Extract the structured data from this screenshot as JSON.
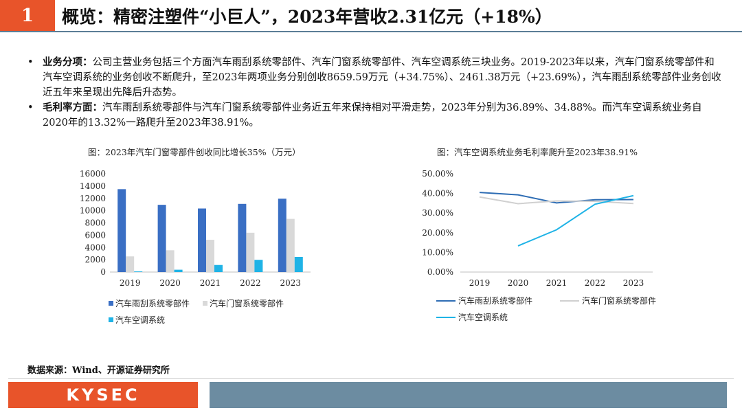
{
  "header": {
    "number": "1",
    "title": "概览：精密注塑件“小巨人”，2023年营收2.31亿元（+18%）"
  },
  "bullets": [
    {
      "label": "业务分项：",
      "text": "公司主营业务包括三个方面汽车雨刮系统零部件、汽车门窗系统零部件、汽车空调系统三块业务。2019-2023年以来，汽车门窗系统零部件和汽车空调系统的业务创收不断爬升，至2023年两项业务分别创收8659.59万元（+34.75%）、2461.38万元（+23.69%），汽车雨刮系统零部件业务创收近五年来呈现出先降后升态势。"
    },
    {
      "label": "毛利率方面：",
      "text": "汽车雨刮系统零部件与汽车门窗系统零部件业务近五年来保持相对平滑走势，2023年分别为36.89%、34.88%。而汽车空调系统业务自2020年的13.32%一路爬升至2023年38.91%。"
    }
  ],
  "source": "数据来源：Wind、开源证券研究所",
  "logo": "KYSEC",
  "colors": {
    "accent": "#e8542a",
    "bar_blue": "#3a6fc4",
    "bar_gray": "#d9d9d9",
    "bar_cyan": "#1fb3e6",
    "line_blue": "#2e6db4",
    "line_gray": "#d0d0d0",
    "line_cyan": "#1fb3e6"
  },
  "chart_data": [
    {
      "type": "bar",
      "title": "图：2023年汽车门窗零部件创收同比增长35%（万元）",
      "categories": [
        "2019",
        "2020",
        "2021",
        "2022",
        "2023"
      ],
      "ylim": [
        0,
        16000
      ],
      "yticks": [
        "0",
        "2000",
        "4000",
        "6000",
        "8000",
        "10000",
        "12000",
        "14000",
        "16000"
      ],
      "series": [
        {
          "name": "汽车雨刮系统零部件",
          "values": [
            13500,
            10950,
            10350,
            11100,
            11950
          ]
        },
        {
          "name": "汽车门窗系统零部件",
          "values": [
            2550,
            3550,
            5250,
            6400,
            8659.59
          ]
        },
        {
          "name": "汽车空调系统",
          "values": [
            100,
            380,
            1150,
            1990,
            2461.38
          ]
        }
      ],
      "legend": "bottom"
    },
    {
      "type": "line",
      "title": "图：汽车空调系统业务毛利率爬升至2023年38.91%",
      "categories": [
        "2019",
        "2020",
        "2021",
        "2022",
        "2023"
      ],
      "ylim": [
        0,
        50
      ],
      "yticks": [
        "0.00%",
        "10.00%",
        "20.00%",
        "30.00%",
        "40.00%",
        "50.00%"
      ],
      "series": [
        {
          "name": "汽车雨刮系统零部件",
          "values": [
            40.5,
            39.3,
            35.2,
            36.8,
            36.89
          ]
        },
        {
          "name": "汽车门窗系统零部件",
          "values": [
            38.2,
            34.8,
            36.2,
            36.0,
            34.88
          ]
        },
        {
          "name": "汽车空调系统",
          "values": [
            null,
            13.32,
            21.5,
            34.5,
            38.91
          ]
        }
      ],
      "legend": "bottom"
    }
  ]
}
